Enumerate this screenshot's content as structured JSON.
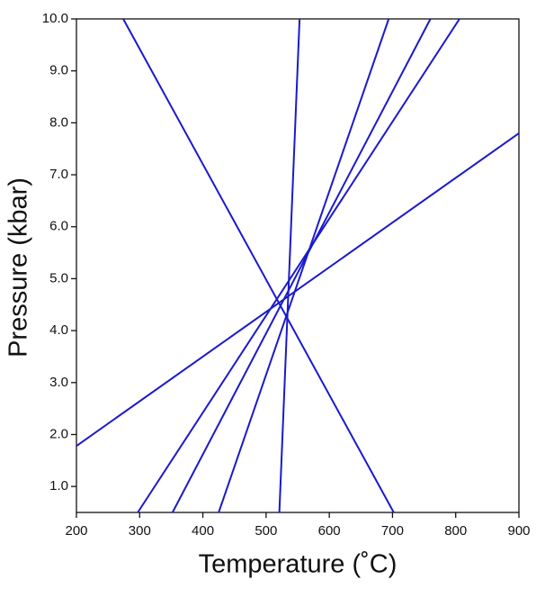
{
  "chart_data": {
    "type": "line",
    "x_label": "Temperature (˚C)",
    "y_label": "Pressure (kbar)",
    "xlim": [
      200,
      900
    ],
    "ylim": [
      0.5,
      10
    ],
    "xticks": [
      200,
      300,
      400,
      500,
      600,
      700,
      800,
      900
    ],
    "yticks": [
      {
        "value": 1,
        "label": "1.0"
      },
      {
        "value": 2,
        "label": "2.0"
      },
      {
        "value": 3,
        "label": "3.0"
      },
      {
        "value": 4,
        "label": "4.0"
      },
      {
        "value": 5,
        "label": "5.0"
      },
      {
        "value": 6,
        "label": "6.0"
      },
      {
        "value": 7,
        "label": "7.0"
      },
      {
        "value": 8,
        "label": "8.0"
      },
      {
        "value": 9,
        "label": "9.0"
      },
      {
        "value": 10,
        "label": "10.0"
      }
    ],
    "series": [
      {
        "color": "#1a1acc",
        "x": [
          274,
          702
        ],
        "values": [
          10,
          0.5
        ]
      },
      {
        "color": "#1a1acc",
        "x": [
          553,
          521
        ],
        "values": [
          10,
          0.5
        ]
      },
      {
        "color": "#1a1acc",
        "x": [
          694,
          425
        ],
        "values": [
          10,
          0.5
        ]
      },
      {
        "color": "#1a1acc",
        "x": [
          760,
          352
        ],
        "values": [
          10,
          0.5
        ]
      },
      {
        "color": "#1a1acc",
        "x": [
          806,
          297
        ],
        "values": [
          10,
          0.5
        ]
      },
      {
        "color": "#1a1acc",
        "x": [
          200,
          900
        ],
        "values": [
          1.78,
          7.8
        ]
      }
    ]
  }
}
